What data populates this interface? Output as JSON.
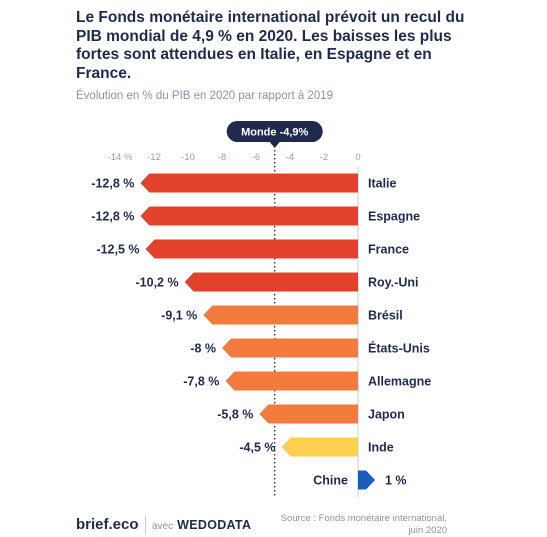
{
  "header": {
    "title": "Le Fonds monétaire international prévoit un recul du PIB mondial de 4,9 % en 2020. Les baisses les plus fortes sont attendues en Italie, en Espagne et en France.",
    "subtitle": "Évolution en % du PIB en 2020 par rapport à 2019"
  },
  "reference": {
    "label": "Monde -4,9%",
    "value": -4.9
  },
  "footer": {
    "brand": "brief.eco",
    "avec": "avec",
    "partner": "WEDODATA",
    "source": "Source : Fonds monétaire international,\njuin 2020"
  },
  "colors": {
    "dark_red": "#e2422b",
    "orange": "#f47b3e",
    "yellow": "#ffd04f",
    "blue": "#1a5bc0",
    "navy": "#1f2a4d",
    "grid": "#c7ccd6"
  },
  "chart_data": {
    "type": "bar",
    "orientation": "horizontal",
    "categories": [
      "Italie",
      "Espagne",
      "France",
      "Roy.-Uni",
      "Brésil",
      "États-Unis",
      "Allemagne",
      "Japon",
      "Inde",
      "Chine"
    ],
    "values": [
      -12.8,
      -12.8,
      -12.5,
      -10.2,
      -9.1,
      -8,
      -7.8,
      -5.8,
      -4.5,
      1
    ],
    "value_labels": [
      "-12,8 %",
      "-12,8 %",
      "-12,5 %",
      "-10,2 %",
      "-9,1 %",
      "-8 %",
      "-7,8 %",
      "-5,8 %",
      "-4,5 %",
      "1 %"
    ],
    "bar_colors": [
      "#e2422b",
      "#e2422b",
      "#e2422b",
      "#e2422b",
      "#f47b3e",
      "#f47b3e",
      "#f47b3e",
      "#f47b3e",
      "#ffd04f",
      "#1a5bc0"
    ],
    "xticks": [
      -14,
      -12,
      -10,
      -8,
      -6,
      -4,
      -2,
      0
    ],
    "xtick_labels": [
      "-14 %",
      "-12",
      "-10",
      "-8",
      "-6",
      "-4",
      "-2",
      "0"
    ],
    "xlim": [
      -14,
      1
    ],
    "grid": false,
    "legend": "none"
  }
}
